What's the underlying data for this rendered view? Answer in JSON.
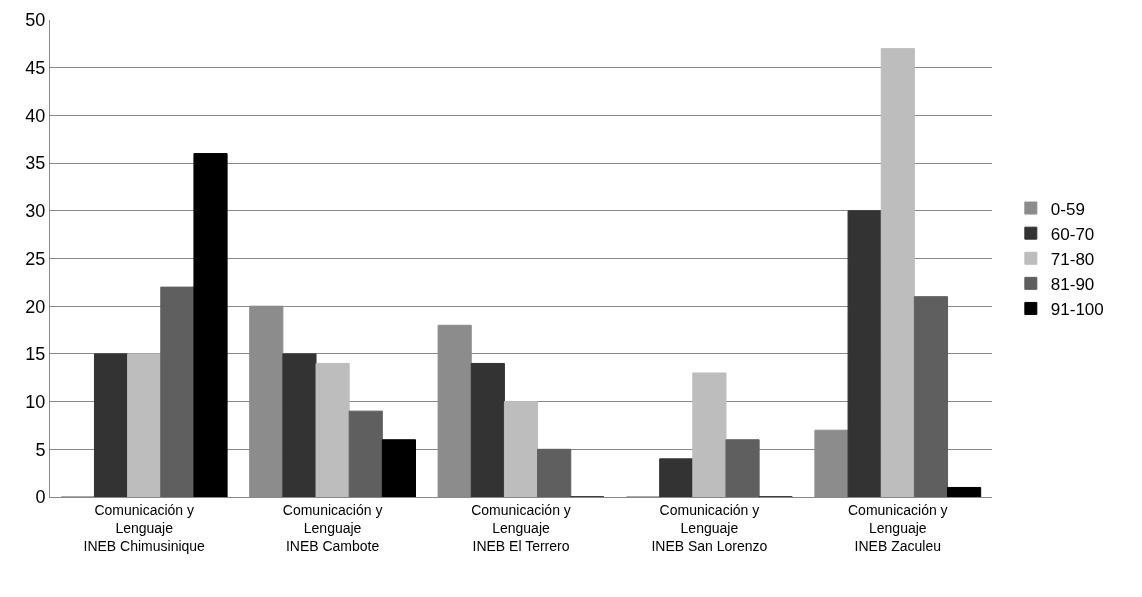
{
  "chart_data": {
    "type": "bar",
    "categories": [
      "Comunicación y\nLenguaje\nINEB Chimusinique",
      "Comunicación y\nLenguaje\nINEB Cambote",
      "Comunicación y\nLenguaje\nINEB El Terrero",
      "Comunicación y\nLenguaje\nINEB San Lorenzo",
      "Comunicación y\nLenguaje\nINEB Zaculeu"
    ],
    "series": [
      {
        "name": "0-59",
        "color": "#8c8c8c",
        "values": [
          0,
          20,
          18,
          0,
          7
        ]
      },
      {
        "name": "60-70",
        "color": "#333333",
        "values": [
          15,
          15,
          14,
          4,
          30
        ]
      },
      {
        "name": "71-80",
        "color": "#bdbdbd",
        "values": [
          15,
          14,
          10,
          13,
          47
        ]
      },
      {
        "name": "81-90",
        "color": "#5f5f5f",
        "values": [
          22,
          9,
          5,
          6,
          21
        ]
      },
      {
        "name": "91-100",
        "color": "#000000",
        "values": [
          36,
          6,
          0,
          0,
          1
        ]
      }
    ],
    "ylim": [
      0,
      50
    ],
    "yticks": [
      0,
      5,
      10,
      15,
      20,
      25,
      30,
      35,
      40,
      45,
      50
    ],
    "grid": "y",
    "legend": "right"
  }
}
